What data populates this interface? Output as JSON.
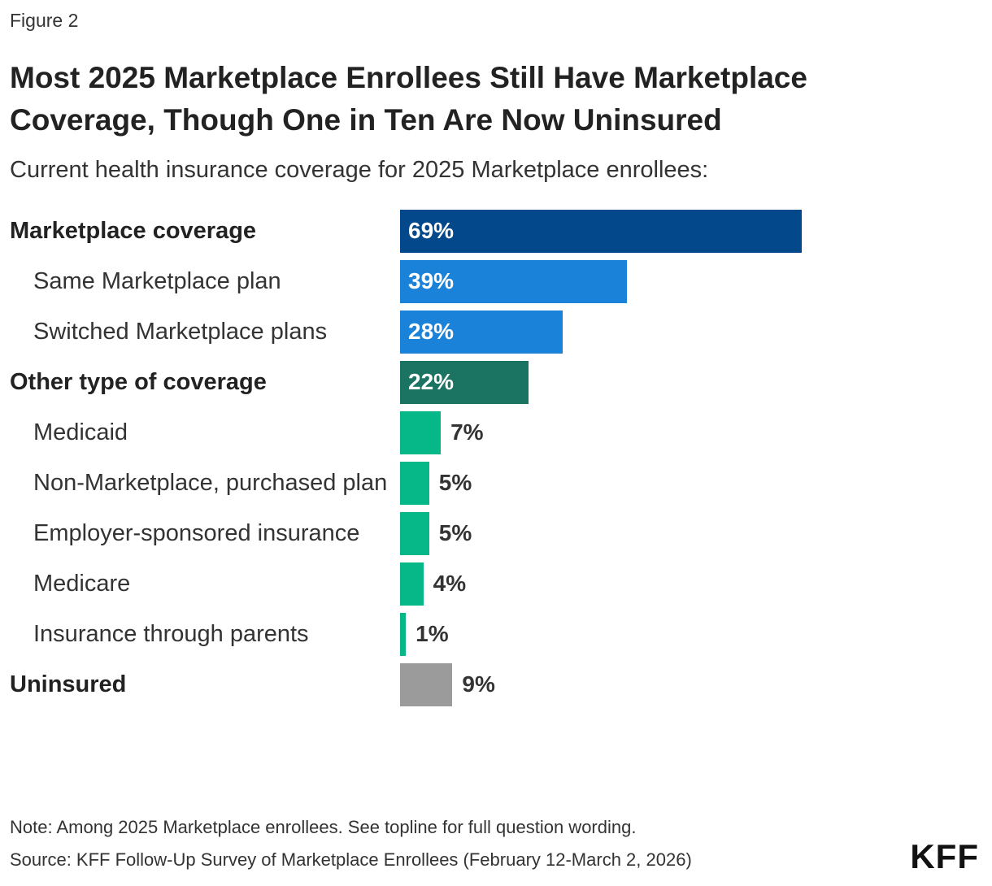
{
  "figure_label": "Figure 2",
  "chart_data": {
    "type": "bar",
    "orientation": "horizontal",
    "title": "Most 2025 Marketplace Enrollees Still Have Marketplace Coverage, Though One in Ten Are Now Uninsured",
    "subtitle": "Current health insurance coverage for 2025 Marketplace enrollees:",
    "categories": [
      "Marketplace coverage",
      "Same Marketplace plan",
      "Switched Marketplace plans",
      "Other type of coverage",
      "Medicaid",
      "Non-Marketplace, purchased plan",
      "Employer-sponsored insurance",
      "Medicare",
      "Insurance through parents",
      "Uninsured"
    ],
    "category_levels": [
      0,
      1,
      1,
      0,
      1,
      1,
      1,
      1,
      1,
      0
    ],
    "values": [
      69,
      39,
      28,
      22,
      7,
      5,
      5,
      4,
      1,
      9
    ],
    "value_labels": [
      "69%",
      "39%",
      "28%",
      "22%",
      "7%",
      "5%",
      "5%",
      "4%",
      "1%",
      "9%"
    ],
    "colors": [
      "#03488a",
      "#1b82d9",
      "#1b82d9",
      "#1b7361",
      "#06b887",
      "#06b887",
      "#06b887",
      "#06b887",
      "#06b887",
      "#9b9b9b"
    ]
  },
  "note": "Note: Among 2025 Marketplace enrollees. See topline for full question wording.",
  "source": "Source: KFF Follow-Up Survey of Marketplace Enrollees (February 12-March 2, 2026)",
  "logo": "KFF"
}
